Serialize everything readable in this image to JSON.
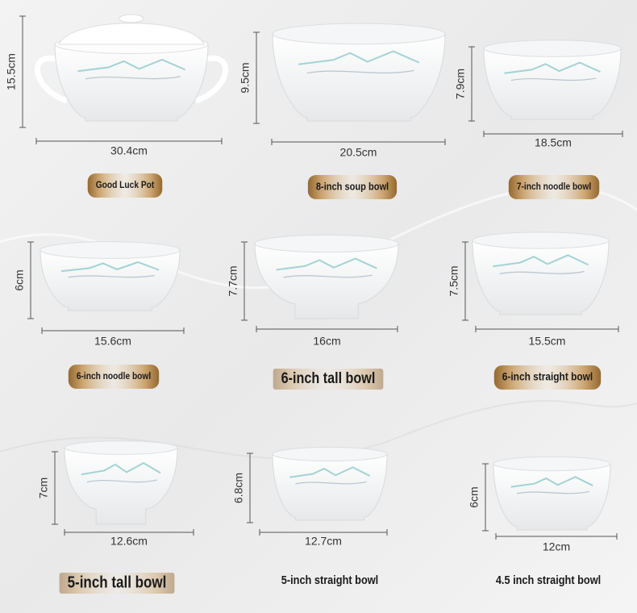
{
  "items": [
    {
      "name": "Good Luck Pot",
      "width": "30.4cm",
      "height": "15.5cm"
    },
    {
      "name": "8-inch soup bowl",
      "width": "20.5cm",
      "height": "9.5cm"
    },
    {
      "name": "7-inch noodle bowl",
      "width": "18.5cm",
      "height": "7.9cm"
    },
    {
      "name": "6-inch noodle bowl",
      "width": "15.6cm",
      "height": "6cm"
    },
    {
      "name": "6-inch tall bowl",
      "width": "16cm",
      "height": "7.7cm"
    },
    {
      "name": "6-inch straight bowl",
      "width": "15.5cm",
      "height": "7.5cm"
    },
    {
      "name": "5-inch tall bowl",
      "width": "12.6cm",
      "height": "7cm"
    },
    {
      "name": "5-inch straight bowl",
      "width": "12.7cm",
      "height": "6.8cm"
    },
    {
      "name": "4.5 inch straight bowl",
      "width": "12cm",
      "height": "6cm"
    }
  ]
}
